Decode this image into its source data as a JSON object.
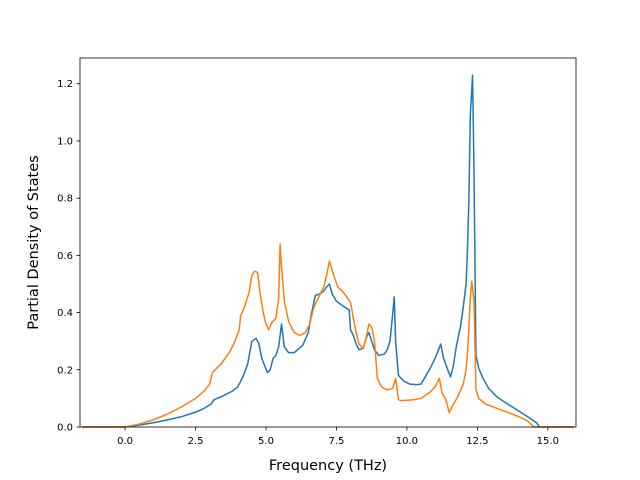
{
  "chart_data": {
    "type": "line",
    "title": "",
    "xlabel": "Frequency (THz)",
    "ylabel": "Partial Density of States",
    "xlim": [
      -1.6,
      16.0
    ],
    "ylim": [
      0.0,
      1.29
    ],
    "xticks": [
      0.0,
      2.5,
      5.0,
      7.5,
      10.0,
      12.5,
      15.0
    ],
    "xtick_labels": [
      "0.0",
      "2.5",
      "5.0",
      "7.5",
      "10.0",
      "12.5",
      "15.0"
    ],
    "yticks": [
      0.0,
      0.2,
      0.4,
      0.6,
      0.8,
      1.0,
      1.2
    ],
    "ytick_labels": [
      "0.0",
      "0.2",
      "0.4",
      "0.6",
      "0.8",
      "1.0",
      "1.2"
    ],
    "grid": false,
    "legend": "none",
    "series": [
      {
        "color": "#1f77b4",
        "points": [
          [
            -1.5,
            0.0
          ],
          [
            0.0,
            0.0
          ],
          [
            0.4,
            0.005
          ],
          [
            1.0,
            0.015
          ],
          [
            1.5,
            0.025
          ],
          [
            2.0,
            0.036
          ],
          [
            2.5,
            0.052
          ],
          [
            2.8,
            0.065
          ],
          [
            3.05,
            0.08
          ],
          [
            3.15,
            0.095
          ],
          [
            3.5,
            0.11
          ],
          [
            3.8,
            0.125
          ],
          [
            4.0,
            0.14
          ],
          [
            4.2,
            0.18
          ],
          [
            4.35,
            0.22
          ],
          [
            4.5,
            0.3
          ],
          [
            4.65,
            0.31
          ],
          [
            4.75,
            0.29
          ],
          [
            4.85,
            0.24
          ],
          [
            5.05,
            0.19
          ],
          [
            5.15,
            0.2
          ],
          [
            5.25,
            0.24
          ],
          [
            5.35,
            0.25
          ],
          [
            5.45,
            0.28
          ],
          [
            5.55,
            0.36
          ],
          [
            5.65,
            0.28
          ],
          [
            5.8,
            0.26
          ],
          [
            6.0,
            0.26
          ],
          [
            6.3,
            0.285
          ],
          [
            6.5,
            0.33
          ],
          [
            6.6,
            0.39
          ],
          [
            6.75,
            0.46
          ],
          [
            6.9,
            0.465
          ],
          [
            7.05,
            0.475
          ],
          [
            7.15,
            0.49
          ],
          [
            7.25,
            0.5
          ],
          [
            7.35,
            0.465
          ],
          [
            7.5,
            0.44
          ],
          [
            7.7,
            0.425
          ],
          [
            7.85,
            0.415
          ],
          [
            7.95,
            0.41
          ],
          [
            8.0,
            0.34
          ],
          [
            8.1,
            0.32
          ],
          [
            8.2,
            0.29
          ],
          [
            8.3,
            0.27
          ],
          [
            8.45,
            0.275
          ],
          [
            8.55,
            0.31
          ],
          [
            8.65,
            0.33
          ],
          [
            8.75,
            0.3
          ],
          [
            8.85,
            0.27
          ],
          [
            9.0,
            0.25
          ],
          [
            9.2,
            0.255
          ],
          [
            9.3,
            0.27
          ],
          [
            9.4,
            0.3
          ],
          [
            9.5,
            0.4
          ],
          [
            9.55,
            0.455
          ],
          [
            9.6,
            0.3
          ],
          [
            9.7,
            0.18
          ],
          [
            9.9,
            0.16
          ],
          [
            10.1,
            0.15
          ],
          [
            10.35,
            0.148
          ],
          [
            10.5,
            0.15
          ],
          [
            10.65,
            0.175
          ],
          [
            10.85,
            0.21
          ],
          [
            11.0,
            0.24
          ],
          [
            11.1,
            0.265
          ],
          [
            11.2,
            0.29
          ],
          [
            11.3,
            0.24
          ],
          [
            11.45,
            0.2
          ],
          [
            11.55,
            0.175
          ],
          [
            11.65,
            0.215
          ],
          [
            11.75,
            0.28
          ],
          [
            11.9,
            0.35
          ],
          [
            12.0,
            0.42
          ],
          [
            12.1,
            0.5
          ],
          [
            12.15,
            0.62
          ],
          [
            12.2,
            0.8
          ],
          [
            12.25,
            1.09
          ],
          [
            12.33,
            1.23
          ],
          [
            12.38,
            0.9
          ],
          [
            12.45,
            0.25
          ],
          [
            12.55,
            0.205
          ],
          [
            12.7,
            0.17
          ],
          [
            12.9,
            0.135
          ],
          [
            13.2,
            0.105
          ],
          [
            13.5,
            0.085
          ],
          [
            13.9,
            0.06
          ],
          [
            14.3,
            0.035
          ],
          [
            14.6,
            0.015
          ],
          [
            14.7,
            0.0
          ],
          [
            15.9,
            0.0
          ]
        ]
      },
      {
        "color": "#ff7f0e",
        "points": [
          [
            -1.5,
            0.0
          ],
          [
            0.0,
            0.0
          ],
          [
            0.5,
            0.01
          ],
          [
            1.0,
            0.025
          ],
          [
            1.5,
            0.045
          ],
          [
            2.0,
            0.07
          ],
          [
            2.5,
            0.1
          ],
          [
            2.8,
            0.125
          ],
          [
            3.0,
            0.15
          ],
          [
            3.1,
            0.19
          ],
          [
            3.4,
            0.22
          ],
          [
            3.7,
            0.26
          ],
          [
            3.9,
            0.3
          ],
          [
            4.05,
            0.34
          ],
          [
            4.1,
            0.39
          ],
          [
            4.2,
            0.41
          ],
          [
            4.3,
            0.44
          ],
          [
            4.4,
            0.47
          ],
          [
            4.5,
            0.53
          ],
          [
            4.6,
            0.545
          ],
          [
            4.7,
            0.54
          ],
          [
            4.8,
            0.46
          ],
          [
            4.9,
            0.4
          ],
          [
            5.0,
            0.36
          ],
          [
            5.1,
            0.34
          ],
          [
            5.2,
            0.365
          ],
          [
            5.35,
            0.38
          ],
          [
            5.45,
            0.45
          ],
          [
            5.5,
            0.64
          ],
          [
            5.55,
            0.56
          ],
          [
            5.65,
            0.44
          ],
          [
            5.8,
            0.37
          ],
          [
            6.0,
            0.33
          ],
          [
            6.2,
            0.32
          ],
          [
            6.4,
            0.33
          ],
          [
            6.55,
            0.36
          ],
          [
            6.7,
            0.42
          ],
          [
            6.9,
            0.46
          ],
          [
            7.05,
            0.49
          ],
          [
            7.15,
            0.53
          ],
          [
            7.25,
            0.58
          ],
          [
            7.4,
            0.53
          ],
          [
            7.55,
            0.49
          ],
          [
            7.75,
            0.47
          ],
          [
            7.9,
            0.45
          ],
          [
            8.0,
            0.435
          ],
          [
            8.1,
            0.38
          ],
          [
            8.2,
            0.33
          ],
          [
            8.3,
            0.29
          ],
          [
            8.45,
            0.275
          ],
          [
            8.55,
            0.31
          ],
          [
            8.65,
            0.36
          ],
          [
            8.75,
            0.35
          ],
          [
            8.85,
            0.3
          ],
          [
            8.95,
            0.17
          ],
          [
            9.1,
            0.14
          ],
          [
            9.3,
            0.13
          ],
          [
            9.5,
            0.135
          ],
          [
            9.6,
            0.17
          ],
          [
            9.7,
            0.095
          ],
          [
            9.8,
            0.092
          ],
          [
            10.2,
            0.095
          ],
          [
            10.5,
            0.1
          ],
          [
            10.8,
            0.12
          ],
          [
            11.0,
            0.14
          ],
          [
            11.15,
            0.17
          ],
          [
            11.25,
            0.12
          ],
          [
            11.4,
            0.09
          ],
          [
            11.5,
            0.05
          ],
          [
            11.65,
            0.08
          ],
          [
            11.8,
            0.105
          ],
          [
            12.0,
            0.15
          ],
          [
            12.1,
            0.2
          ],
          [
            12.15,
            0.26
          ],
          [
            12.2,
            0.35
          ],
          [
            12.25,
            0.45
          ],
          [
            12.3,
            0.51
          ],
          [
            12.38,
            0.44
          ],
          [
            12.45,
            0.13
          ],
          [
            12.55,
            0.1
          ],
          [
            12.8,
            0.08
          ],
          [
            13.2,
            0.065
          ],
          [
            13.6,
            0.05
          ],
          [
            14.0,
            0.035
          ],
          [
            14.3,
            0.02
          ],
          [
            14.5,
            0.0
          ],
          [
            15.9,
            0.0
          ]
        ]
      }
    ]
  }
}
